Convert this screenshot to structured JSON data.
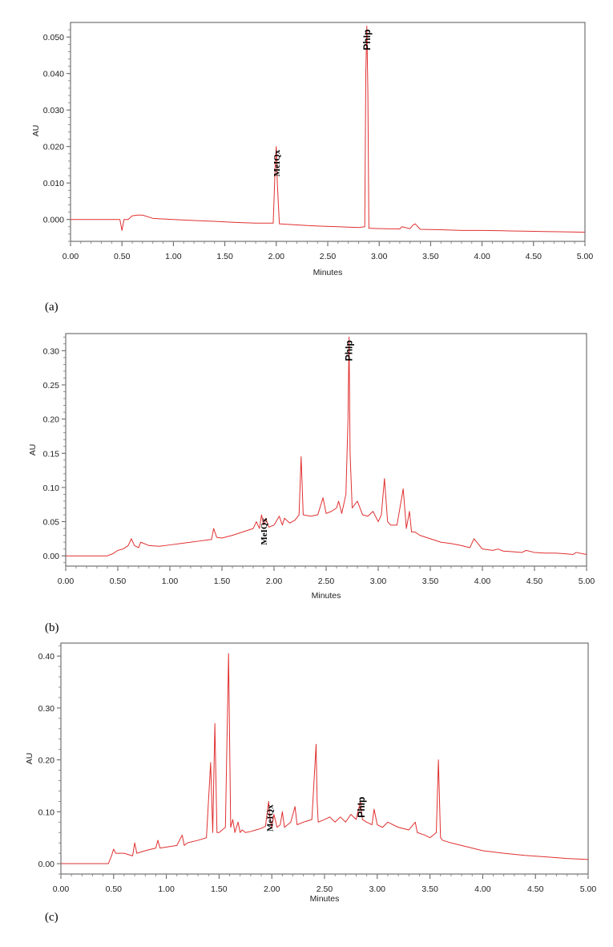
{
  "chart_data": [
    {
      "type": "line",
      "panel_label": "(a)",
      "xlabel": "Minutes",
      "ylabel": "AU",
      "xlim": [
        0,
        5
      ],
      "ylim": [
        -0.006,
        0.054
      ],
      "x_ticks": [
        "0.00",
        "0.50",
        "1.00",
        "1.50",
        "2.00",
        "2.50",
        "3.00",
        "3.50",
        "4.00",
        "4.50",
        "5.00"
      ],
      "y_ticks": [
        {
          "value": 0.0,
          "label": "0.000"
        },
        {
          "value": 0.01,
          "label": "0.010"
        },
        {
          "value": 0.02,
          "label": "0.020"
        },
        {
          "value": 0.03,
          "label": "0.030"
        },
        {
          "value": 0.04,
          "label": "0.040"
        },
        {
          "value": 0.05,
          "label": "0.050"
        }
      ],
      "line_color": "#e03030",
      "annotations": [
        {
          "text": "MeIQx",
          "x": 2.0,
          "y": 0.02,
          "font": "serif"
        },
        {
          "text": "PhIp",
          "x": 2.88,
          "y": 0.053,
          "font": "sans"
        }
      ],
      "series": [
        {
          "x": [
            0.0,
            0.48,
            0.5,
            0.52,
            0.56,
            0.6,
            0.65,
            0.7,
            0.8,
            1.0,
            1.2,
            1.4,
            1.6,
            1.8,
            1.97,
            1.99,
            2.0,
            2.01,
            2.03,
            2.2,
            2.4,
            2.6,
            2.8,
            2.86,
            2.87,
            2.88,
            2.89,
            2.9,
            3.0,
            3.2,
            3.22,
            3.3,
            3.33,
            3.35,
            3.4,
            3.6,
            3.8,
            4.0,
            4.2,
            4.4,
            4.6,
            4.8,
            5.0
          ],
          "y": [
            0.0,
            0.0,
            -0.003,
            0.0,
            0.0,
            0.001,
            0.0012,
            0.0012,
            0.0003,
            0.0,
            -0.0003,
            -0.0005,
            -0.0008,
            -0.001,
            -0.001,
            0.015,
            0.02,
            0.01,
            -0.0012,
            -0.0015,
            -0.0018,
            -0.002,
            -0.0022,
            -0.002,
            0.04,
            0.053,
            0.035,
            -0.0024,
            -0.0025,
            -0.0026,
            -0.002,
            -0.0025,
            -0.0015,
            -0.0012,
            -0.0027,
            -0.0028,
            -0.003,
            -0.003,
            -0.0031,
            -0.0032,
            -0.0033,
            -0.0034,
            -0.0035
          ]
        }
      ]
    },
    {
      "type": "line",
      "panel_label": "(b)",
      "xlabel": "Minutes",
      "ylabel": "AU",
      "xlim": [
        0,
        5
      ],
      "ylim": [
        -0.015,
        0.325
      ],
      "x_ticks": [
        "0.00",
        "0.50",
        "1.00",
        "1.50",
        "2.00",
        "2.50",
        "3.00",
        "3.50",
        "4.00",
        "4.50",
        "5.00"
      ],
      "y_ticks": [
        {
          "value": 0.0,
          "label": "0.00"
        },
        {
          "value": 0.05,
          "label": "0.05"
        },
        {
          "value": 0.1,
          "label": "0.10"
        },
        {
          "value": 0.15,
          "label": "0.15"
        },
        {
          "value": 0.2,
          "label": "0.20"
        },
        {
          "value": 0.25,
          "label": "0.25"
        },
        {
          "value": 0.3,
          "label": "0.30"
        }
      ],
      "line_color": "#e03030",
      "annotations": [
        {
          "text": "MeIQx",
          "x": 1.9,
          "y": 0.06,
          "font": "serif"
        },
        {
          "text": "PhIp",
          "x": 2.72,
          "y": 0.32,
          "font": "sans"
        }
      ],
      "series": [
        {
          "x": [
            0.0,
            0.4,
            0.45,
            0.5,
            0.55,
            0.6,
            0.63,
            0.66,
            0.7,
            0.72,
            0.8,
            0.9,
            1.0,
            1.1,
            1.2,
            1.3,
            1.4,
            1.42,
            1.45,
            1.5,
            1.6,
            1.7,
            1.8,
            1.83,
            1.86,
            1.88,
            1.9,
            1.92,
            1.95,
            2.0,
            2.05,
            2.08,
            2.1,
            2.15,
            2.2,
            2.24,
            2.26,
            2.28,
            2.35,
            2.42,
            2.47,
            2.5,
            2.55,
            2.6,
            2.62,
            2.65,
            2.69,
            2.71,
            2.72,
            2.73,
            2.75,
            2.8,
            2.85,
            2.9,
            2.95,
            3.0,
            3.03,
            3.06,
            3.09,
            3.12,
            3.18,
            3.24,
            3.27,
            3.3,
            3.32,
            3.35,
            3.4,
            3.5,
            3.6,
            3.7,
            3.8,
            3.88,
            3.92,
            4.0,
            4.1,
            4.15,
            4.2,
            4.3,
            4.38,
            4.42,
            4.5,
            4.6,
            4.7,
            4.8,
            4.87,
            4.9,
            5.0
          ],
          "y": [
            0.0,
            0.0,
            0.003,
            0.008,
            0.01,
            0.015,
            0.025,
            0.015,
            0.012,
            0.02,
            0.015,
            0.014,
            0.016,
            0.018,
            0.02,
            0.022,
            0.024,
            0.04,
            0.027,
            0.026,
            0.03,
            0.035,
            0.04,
            0.05,
            0.04,
            0.06,
            0.045,
            0.055,
            0.042,
            0.045,
            0.058,
            0.045,
            0.055,
            0.048,
            0.052,
            0.06,
            0.145,
            0.06,
            0.058,
            0.06,
            0.085,
            0.062,
            0.065,
            0.07,
            0.08,
            0.062,
            0.09,
            0.2,
            0.32,
            0.15,
            0.07,
            0.08,
            0.06,
            0.058,
            0.065,
            0.05,
            0.06,
            0.113,
            0.05,
            0.045,
            0.045,
            0.098,
            0.04,
            0.065,
            0.035,
            0.035,
            0.03,
            0.025,
            0.02,
            0.018,
            0.015,
            0.012,
            0.025,
            0.01,
            0.008,
            0.01,
            0.007,
            0.006,
            0.005,
            0.008,
            0.005,
            0.004,
            0.004,
            0.003,
            0.002,
            0.005,
            0.002
          ]
        }
      ]
    },
    {
      "type": "line",
      "panel_label": "(c)",
      "xlabel": "Minutes",
      "ylabel": "AU",
      "xlim": [
        0,
        5
      ],
      "ylim": [
        -0.02,
        0.425
      ],
      "x_ticks": [
        "0.00",
        "0.50",
        "1.00",
        "1.50",
        "2.00",
        "2.50",
        "3.00",
        "3.50",
        "4.00",
        "4.50",
        "5.00"
      ],
      "y_ticks": [
        {
          "value": 0.0,
          "label": "0.00"
        },
        {
          "value": 0.1,
          "label": "0.10"
        },
        {
          "value": 0.2,
          "label": "0.20"
        },
        {
          "value": 0.3,
          "label": "0.30"
        },
        {
          "value": 0.4,
          "label": "0.40"
        }
      ],
      "line_color": "#e03030",
      "annotations": [
        {
          "text": "MeIQx",
          "x": 1.98,
          "y": 0.12,
          "font": "serif"
        },
        {
          "text": "PhIp",
          "x": 2.85,
          "y": 0.135,
          "font": "sans"
        }
      ],
      "series": [
        {
          "x": [
            0.0,
            0.45,
            0.48,
            0.5,
            0.52,
            0.6,
            0.68,
            0.7,
            0.72,
            0.8,
            0.9,
            0.92,
            0.94,
            1.0,
            1.1,
            1.15,
            1.17,
            1.2,
            1.3,
            1.38,
            1.42,
            1.44,
            1.46,
            1.48,
            1.5,
            1.53,
            1.56,
            1.59,
            1.61,
            1.63,
            1.65,
            1.68,
            1.7,
            1.72,
            1.75,
            1.8,
            1.85,
            1.9,
            1.94,
            1.97,
            1.98,
            2.0,
            2.02,
            2.05,
            2.08,
            2.1,
            2.12,
            2.15,
            2.18,
            2.22,
            2.24,
            2.3,
            2.38,
            2.42,
            2.43,
            2.44,
            2.5,
            2.55,
            2.6,
            2.65,
            2.7,
            2.75,
            2.8,
            2.84,
            2.86,
            2.9,
            2.95,
            2.97,
            3.0,
            3.05,
            3.1,
            3.2,
            3.3,
            3.36,
            3.38,
            3.45,
            3.5,
            3.56,
            3.58,
            3.6,
            3.62,
            3.7,
            3.8,
            3.9,
            4.0,
            4.2,
            4.4,
            4.6,
            4.8,
            5.0
          ],
          "y": [
            0.0,
            0.0,
            0.015,
            0.028,
            0.02,
            0.02,
            0.015,
            0.04,
            0.02,
            0.025,
            0.03,
            0.045,
            0.03,
            0.032,
            0.035,
            0.055,
            0.035,
            0.04,
            0.045,
            0.05,
            0.195,
            0.06,
            0.27,
            0.06,
            0.06,
            0.065,
            0.07,
            0.405,
            0.07,
            0.085,
            0.06,
            0.08,
            0.06,
            0.065,
            0.06,
            0.062,
            0.065,
            0.068,
            0.072,
            0.12,
            0.09,
            0.07,
            0.095,
            0.07,
            0.075,
            0.1,
            0.07,
            0.075,
            0.08,
            0.11,
            0.075,
            0.08,
            0.085,
            0.23,
            0.12,
            0.08,
            0.085,
            0.09,
            0.08,
            0.09,
            0.08,
            0.095,
            0.085,
            0.12,
            0.085,
            0.08,
            0.075,
            0.105,
            0.075,
            0.07,
            0.08,
            0.07,
            0.065,
            0.08,
            0.06,
            0.055,
            0.05,
            0.06,
            0.2,
            0.05,
            0.045,
            0.04,
            0.035,
            0.03,
            0.025,
            0.02,
            0.016,
            0.013,
            0.01,
            0.008
          ]
        }
      ]
    }
  ]
}
